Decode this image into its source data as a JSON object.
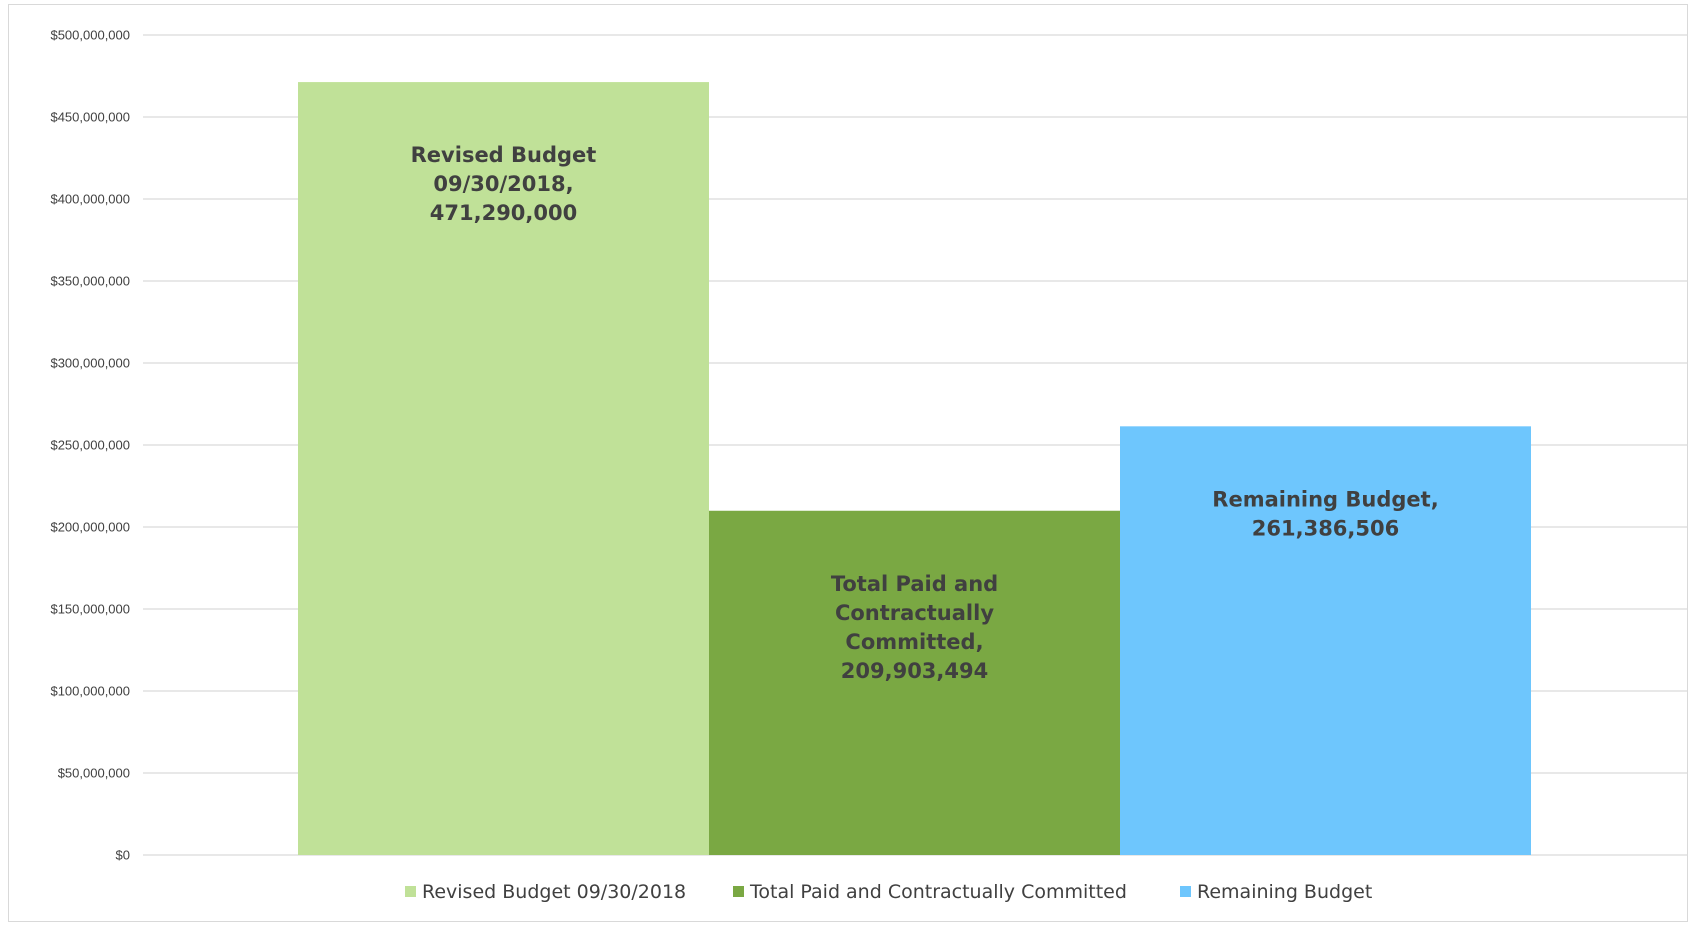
{
  "chart_data": {
    "type": "bar",
    "title": "",
    "xlabel": "",
    "ylabel": "",
    "ylim": [
      0,
      500000000
    ],
    "y_ticks": [
      0,
      50000000,
      100000000,
      150000000,
      200000000,
      250000000,
      300000000,
      350000000,
      400000000,
      450000000,
      500000000
    ],
    "y_tick_labels": [
      "$0",
      "$50,000,000",
      "$100,000,000",
      "$150,000,000",
      "$200,000,000",
      "$250,000,000",
      "$300,000,000",
      "$350,000,000",
      "$400,000,000",
      "$450,000,000",
      "$500,000,000"
    ],
    "grid": true,
    "legend_position": "bottom",
    "series": [
      {
        "name": "Revised Budget 09/30/2018",
        "value": 471290000,
        "color": "#c0e198",
        "data_label": [
          "Revised Budget",
          "09/30/2018,",
          "471,290,000"
        ]
      },
      {
        "name": "Total Paid and Contractually Committed",
        "value": 209903494,
        "color": "#7aa843",
        "data_label": [
          "Total Paid and",
          "Contractually",
          "Committed,",
          "209,903,494"
        ]
      },
      {
        "name": "Remaining Budget",
        "value": 261386506,
        "color": "#6ec6fd",
        "data_label": [
          "Remaining Budget,",
          "261,386,506"
        ]
      }
    ]
  }
}
